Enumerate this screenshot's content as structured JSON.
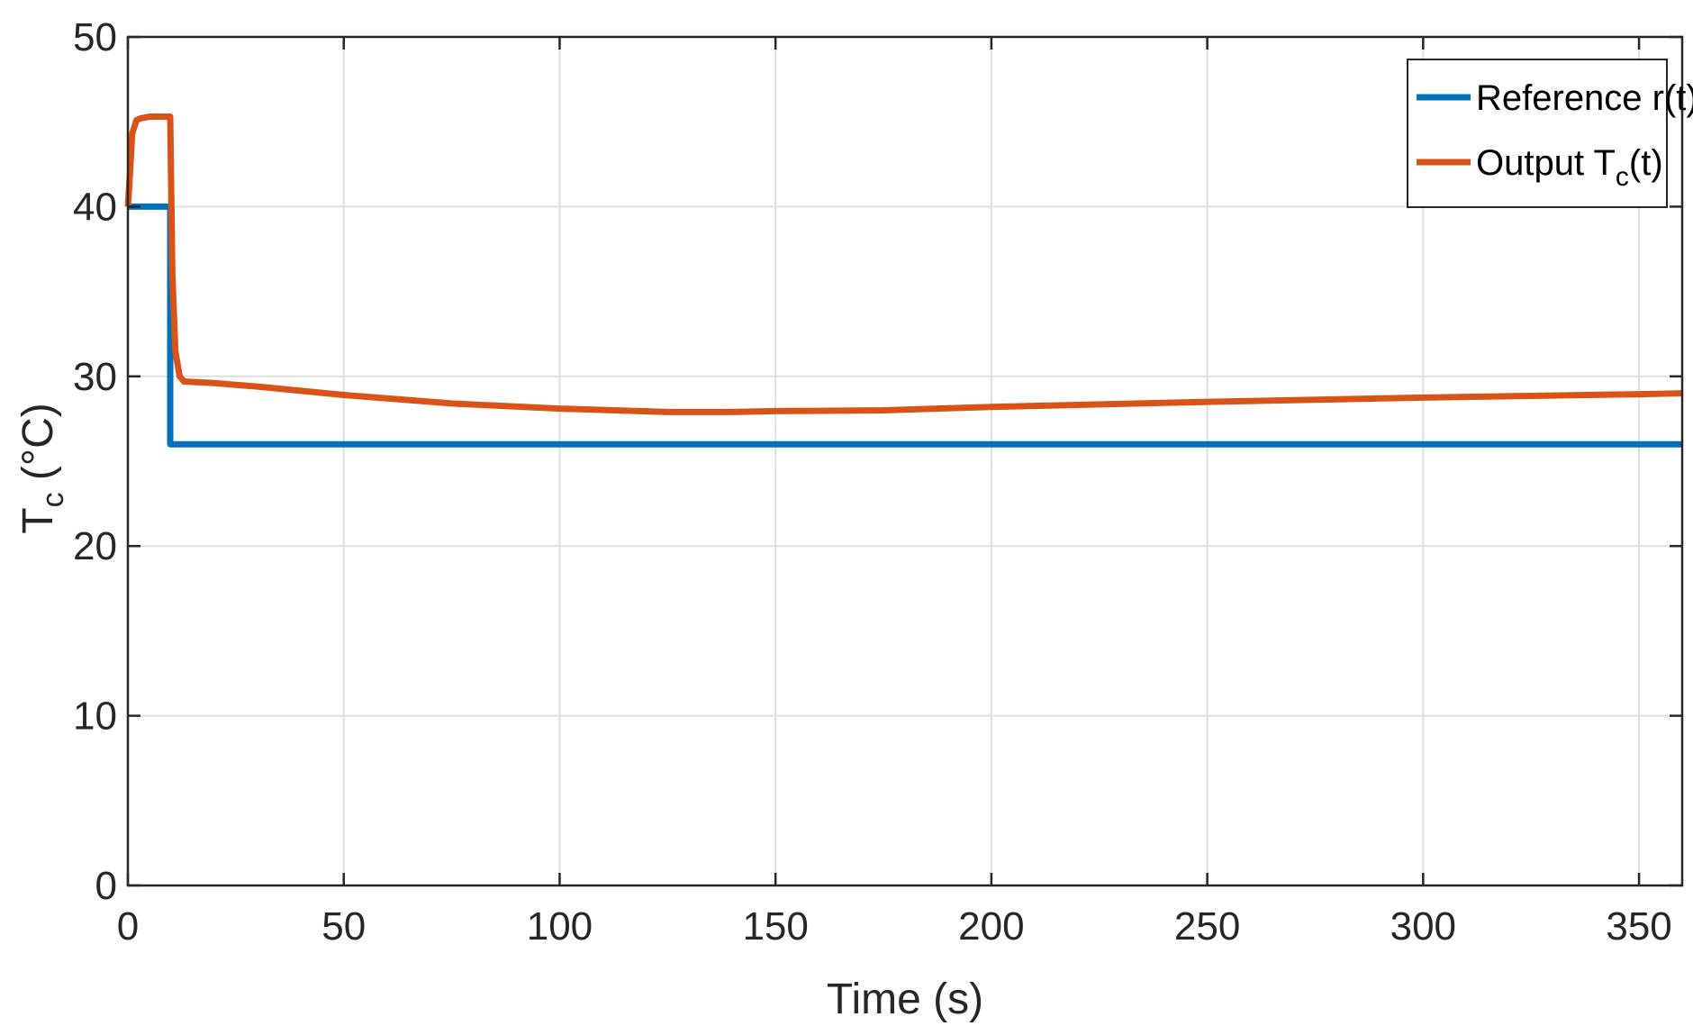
{
  "chart_data": {
    "type": "line",
    "xlabel": "Time (s)",
    "ylabel": {
      "main": "T",
      "sub": "c",
      "rest": " (°C)"
    },
    "xlim": [
      0,
      360
    ],
    "ylim": [
      0,
      50
    ],
    "xticks": [
      0,
      50,
      100,
      150,
      200,
      250,
      300,
      350
    ],
    "yticks": [
      0,
      10,
      20,
      30,
      40,
      50
    ],
    "grid": true,
    "legend_position": "top-right",
    "series": [
      {
        "name": "Reference r(t)",
        "color": "#0072BD",
        "x": [
          0,
          9.8,
          9.8,
          360
        ],
        "y": [
          40,
          40,
          26,
          26
        ]
      },
      {
        "name": {
          "main": "Output T",
          "sub": "c",
          "rest": "(t)"
        },
        "color": "#D95319",
        "x": [
          0,
          0.5,
          1,
          2,
          3,
          5,
          8,
          9.8,
          10.3,
          11,
          12,
          13,
          20,
          30,
          50,
          75,
          100,
          125,
          140,
          150,
          175,
          200,
          250,
          300,
          350,
          360
        ],
        "y": [
          40,
          42,
          44.3,
          45.1,
          45.2,
          45.3,
          45.3,
          45.3,
          36,
          31.5,
          30,
          29.7,
          29.6,
          29.4,
          28.9,
          28.4,
          28.1,
          27.9,
          27.9,
          27.95,
          28.0,
          28.2,
          28.5,
          28.75,
          28.95,
          29.0
        ]
      }
    ]
  }
}
